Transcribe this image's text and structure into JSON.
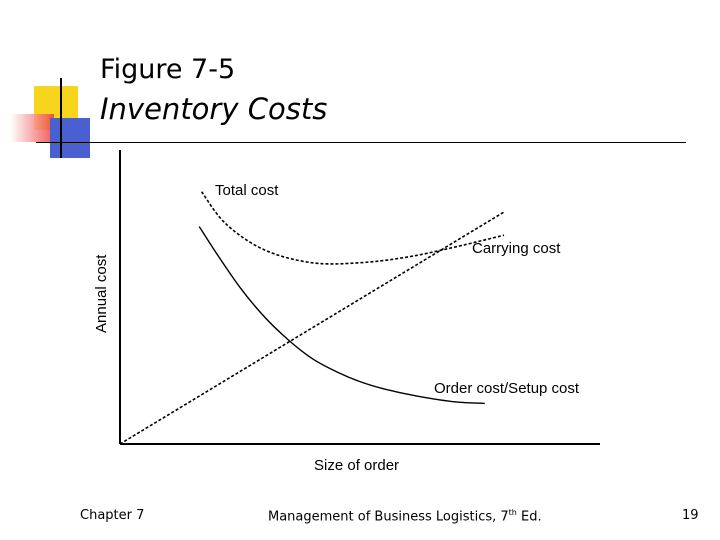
{
  "slide": {
    "title_line1": "Figure 7-5",
    "title_line2": "Inventory Costs"
  },
  "footer": {
    "chapter": "Chapter 7",
    "book_pre": "Management of Business Logistics, 7",
    "book_sup": "th",
    "book_post": " Ed.",
    "page_number": "19"
  },
  "colors": {
    "deco_yellow": "#f7d51d",
    "deco_red": "#f03c3c",
    "deco_blue": "#4a5fd0"
  },
  "chart_data": {
    "type": "line",
    "title": "",
    "xlabel": "Size of order",
    "ylabel": "Annual cost",
    "x_scale": [
      0,
      100
    ],
    "y_scale": [
      0,
      100
    ],
    "ticks": "none",
    "series": [
      {
        "name": "Total cost",
        "style": "dashed",
        "points": [
          [
            17,
            87
          ],
          [
            22,
            76
          ],
          [
            30,
            67
          ],
          [
            40,
            62.5
          ],
          [
            50,
            62.5
          ],
          [
            60,
            64.5
          ],
          [
            70,
            68
          ],
          [
            80,
            72
          ]
        ]
      },
      {
        "name": "Carrying cost",
        "style": "dashed",
        "points": [
          [
            0,
            0
          ],
          [
            80,
            80
          ]
        ]
      },
      {
        "name": "Order cost/Setup cost",
        "style": "solid",
        "points": [
          [
            16.5,
            75
          ],
          [
            20,
            66
          ],
          [
            25,
            54
          ],
          [
            30,
            44
          ],
          [
            35,
            36
          ],
          [
            40,
            29.5
          ],
          [
            45,
            25
          ],
          [
            50,
            21.5
          ],
          [
            55,
            19
          ],
          [
            62,
            16.5
          ],
          [
            70,
            14.5
          ],
          [
            76,
            14
          ]
        ]
      }
    ]
  }
}
